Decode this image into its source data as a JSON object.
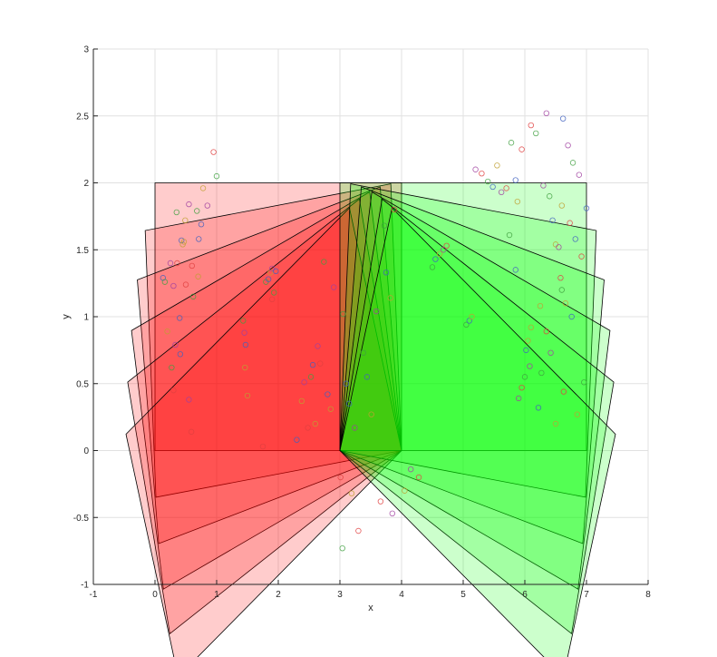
{
  "chart_data": {
    "type": "scatter",
    "title": "",
    "xlabel": "x",
    "ylabel": "y",
    "xlim": [
      -1,
      8
    ],
    "ylim": [
      -1,
      3
    ],
    "xticks": [
      "-1",
      "0",
      "1",
      "2",
      "3",
      "4",
      "5",
      "6",
      "7",
      "8"
    ],
    "yticks": [
      "-1",
      "-0.5",
      "0",
      "0.5",
      "1",
      "1.5",
      "2",
      "2.5",
      "3"
    ],
    "grid": true,
    "rectangles": [
      {
        "name": "red region",
        "color": "#ff0000",
        "x0": 0,
        "y0": 0,
        "width": 4,
        "height": 2,
        "pivot": [
          4,
          0
        ],
        "angles_deg": [
          0,
          5,
          10,
          15,
          20,
          25
        ]
      },
      {
        "name": "green region",
        "color": "#00ff00",
        "x0": 3,
        "y0": 0,
        "width": 4,
        "height": 2,
        "pivot": [
          3,
          0
        ],
        "angles_deg": [
          0,
          -5,
          -10,
          -15,
          -20,
          -25
        ]
      }
    ],
    "point_colors": [
      "#e04040",
      "#40a040",
      "#4060c0",
      "#c0a030",
      "#a040a0"
    ],
    "series": [
      {
        "values": [
          [
            0.3,
            0.45
          ],
          [
            0.35,
            1.78
          ],
          [
            0.43,
            1.57
          ],
          [
            0.49,
            1.72
          ],
          [
            0.55,
            1.84
          ],
          [
            0.6,
            1.38
          ],
          [
            0.62,
            1.15
          ],
          [
            0.75,
            1.69
          ],
          [
            0.78,
            1.96
          ],
          [
            0.85,
            1.83
          ],
          [
            0.95,
            2.23
          ],
          [
            1.0,
            2.05
          ],
          [
            0.13,
            1.29
          ],
          [
            0.2,
            0.89
          ],
          [
            0.25,
            1.4
          ],
          [
            0.36,
            1.4
          ],
          [
            0.27,
            0.62
          ],
          [
            0.41,
            0.72
          ],
          [
            0.47,
            1.56
          ],
          [
            0.55,
            0.38
          ],
          [
            0.59,
            0.14
          ],
          [
            0.68,
            1.79
          ],
          [
            0.71,
            1.58
          ],
          [
            0.45,
            1.54
          ],
          [
            0.3,
            1.23
          ],
          [
            0.5,
            1.24
          ],
          [
            0.16,
            1.26
          ],
          [
            0.4,
            0.99
          ],
          [
            0.7,
            1.3
          ],
          [
            0.33,
            0.79
          ]
        ]
      },
      {
        "values": [
          [
            1.43,
            0.97
          ],
          [
            1.47,
            0.79
          ],
          [
            1.5,
            0.41
          ],
          [
            1.45,
            0.88
          ],
          [
            1.75,
            0.03
          ],
          [
            1.8,
            1.26
          ],
          [
            1.84,
            1.28
          ],
          [
            1.87,
            1.33
          ],
          [
            1.9,
            1.36
          ],
          [
            1.9,
            1.13
          ],
          [
            1.93,
            1.18
          ],
          [
            1.96,
            1.34
          ],
          [
            1.46,
            0.62
          ]
        ]
      },
      {
        "values": [
          [
            2.3,
            0.08
          ],
          [
            2.38,
            0.37
          ],
          [
            2.42,
            0.51
          ],
          [
            2.48,
            0.17
          ],
          [
            2.53,
            0.55
          ],
          [
            2.56,
            0.64
          ],
          [
            2.6,
            0.2
          ],
          [
            2.64,
            0.78
          ],
          [
            2.68,
            0.65
          ],
          [
            2.74,
            1.41
          ],
          [
            2.8,
            0.42
          ],
          [
            2.85,
            0.31
          ],
          [
            2.9,
            1.22
          ],
          [
            3.01,
            -0.2
          ],
          [
            3.05,
            1.02
          ],
          [
            3.1,
            0.5
          ],
          [
            3.19,
            -0.32
          ],
          [
            3.24,
            0.17
          ],
          [
            3.3,
            -0.6
          ],
          [
            3.38,
            0.73
          ],
          [
            3.44,
            0.55
          ],
          [
            3.51,
            0.27
          ],
          [
            3.59,
            1.04
          ],
          [
            3.66,
            -0.38
          ],
          [
            3.72,
            1.68
          ],
          [
            3.75,
            1.33
          ],
          [
            3.82,
            1.14
          ],
          [
            3.85,
            -0.47
          ],
          [
            3.88,
            1.8
          ],
          [
            3.04,
            -0.73
          ],
          [
            3.15,
            0.35
          ]
        ]
      },
      {
        "values": [
          [
            4.05,
            -0.3
          ],
          [
            4.15,
            -0.14
          ],
          [
            4.28,
            -0.2
          ],
          [
            4.5,
            1.37
          ],
          [
            4.55,
            1.43
          ],
          [
            4.62,
            1.47
          ],
          [
            4.68,
            1.5
          ],
          [
            4.73,
            1.53
          ],
          [
            5.05,
            0.94
          ],
          [
            5.1,
            0.97
          ],
          [
            5.14,
            1.0
          ],
          [
            5.2,
            2.1
          ],
          [
            5.3,
            2.07
          ],
          [
            5.4,
            2.01
          ],
          [
            5.48,
            1.97
          ],
          [
            5.55,
            2.13
          ],
          [
            5.62,
            1.93
          ],
          [
            5.7,
            1.96
          ],
          [
            5.78,
            2.3
          ],
          [
            5.85,
            2.02
          ],
          [
            5.88,
            1.86
          ],
          [
            5.9,
            0.39
          ],
          [
            5.95,
            0.47
          ],
          [
            6.0,
            0.55
          ],
          [
            6.02,
            0.75
          ],
          [
            6.05,
            0.82
          ],
          [
            6.08,
            0.63
          ],
          [
            6.1,
            2.43
          ],
          [
            6.18,
            2.37
          ],
          [
            6.22,
            0.32
          ],
          [
            6.25,
            1.08
          ]
        ]
      },
      {
        "values": [
          [
            6.3,
            1.98
          ],
          [
            6.35,
            0.89
          ],
          [
            6.4,
            1.9
          ],
          [
            6.45,
            1.72
          ],
          [
            6.5,
            1.54
          ],
          [
            6.55,
            1.52
          ],
          [
            6.58,
            1.29
          ],
          [
            6.6,
            1.2
          ],
          [
            6.62,
            2.48
          ],
          [
            6.66,
            1.1
          ],
          [
            6.7,
            2.28
          ],
          [
            6.73,
            1.7
          ],
          [
            6.78,
            2.15
          ],
          [
            6.82,
            1.58
          ],
          [
            6.85,
            0.27
          ],
          [
            6.88,
            2.06
          ],
          [
            6.92,
            1.45
          ],
          [
            6.96,
            0.51
          ],
          [
            7.0,
            1.81
          ],
          [
            6.5,
            0.2
          ],
          [
            6.35,
            2.52
          ],
          [
            5.95,
            2.25
          ],
          [
            5.75,
            1.61
          ],
          [
            5.85,
            1.35
          ],
          [
            6.1,
            0.92
          ],
          [
            6.42,
            0.73
          ],
          [
            6.63,
            0.44
          ],
          [
            6.27,
            0.58
          ],
          [
            6.76,
            1.0
          ],
          [
            6.6,
            1.83
          ]
        ]
      }
    ]
  }
}
